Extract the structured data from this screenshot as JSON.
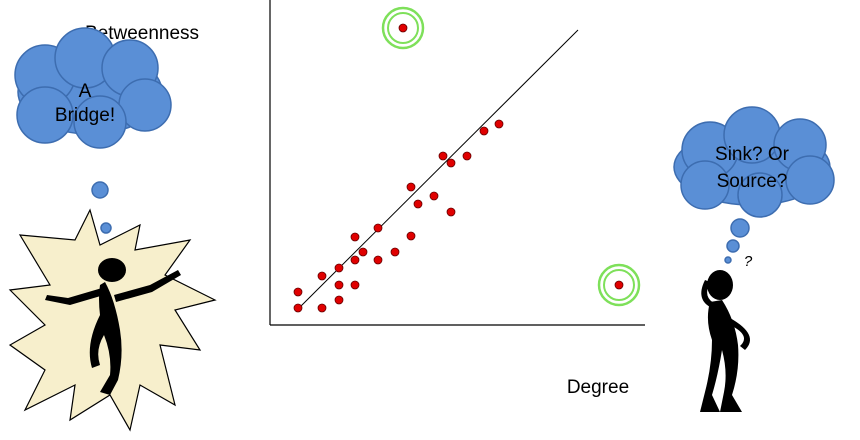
{
  "y_axis_label": "Betweenness",
  "x_axis_label": "Degree",
  "left_cloud": {
    "lines": [
      "A",
      "Bridge!"
    ]
  },
  "right_cloud": {
    "lines": [
      "Sink?  Or",
      "Source?"
    ]
  },
  "question_mark": "?"
}
